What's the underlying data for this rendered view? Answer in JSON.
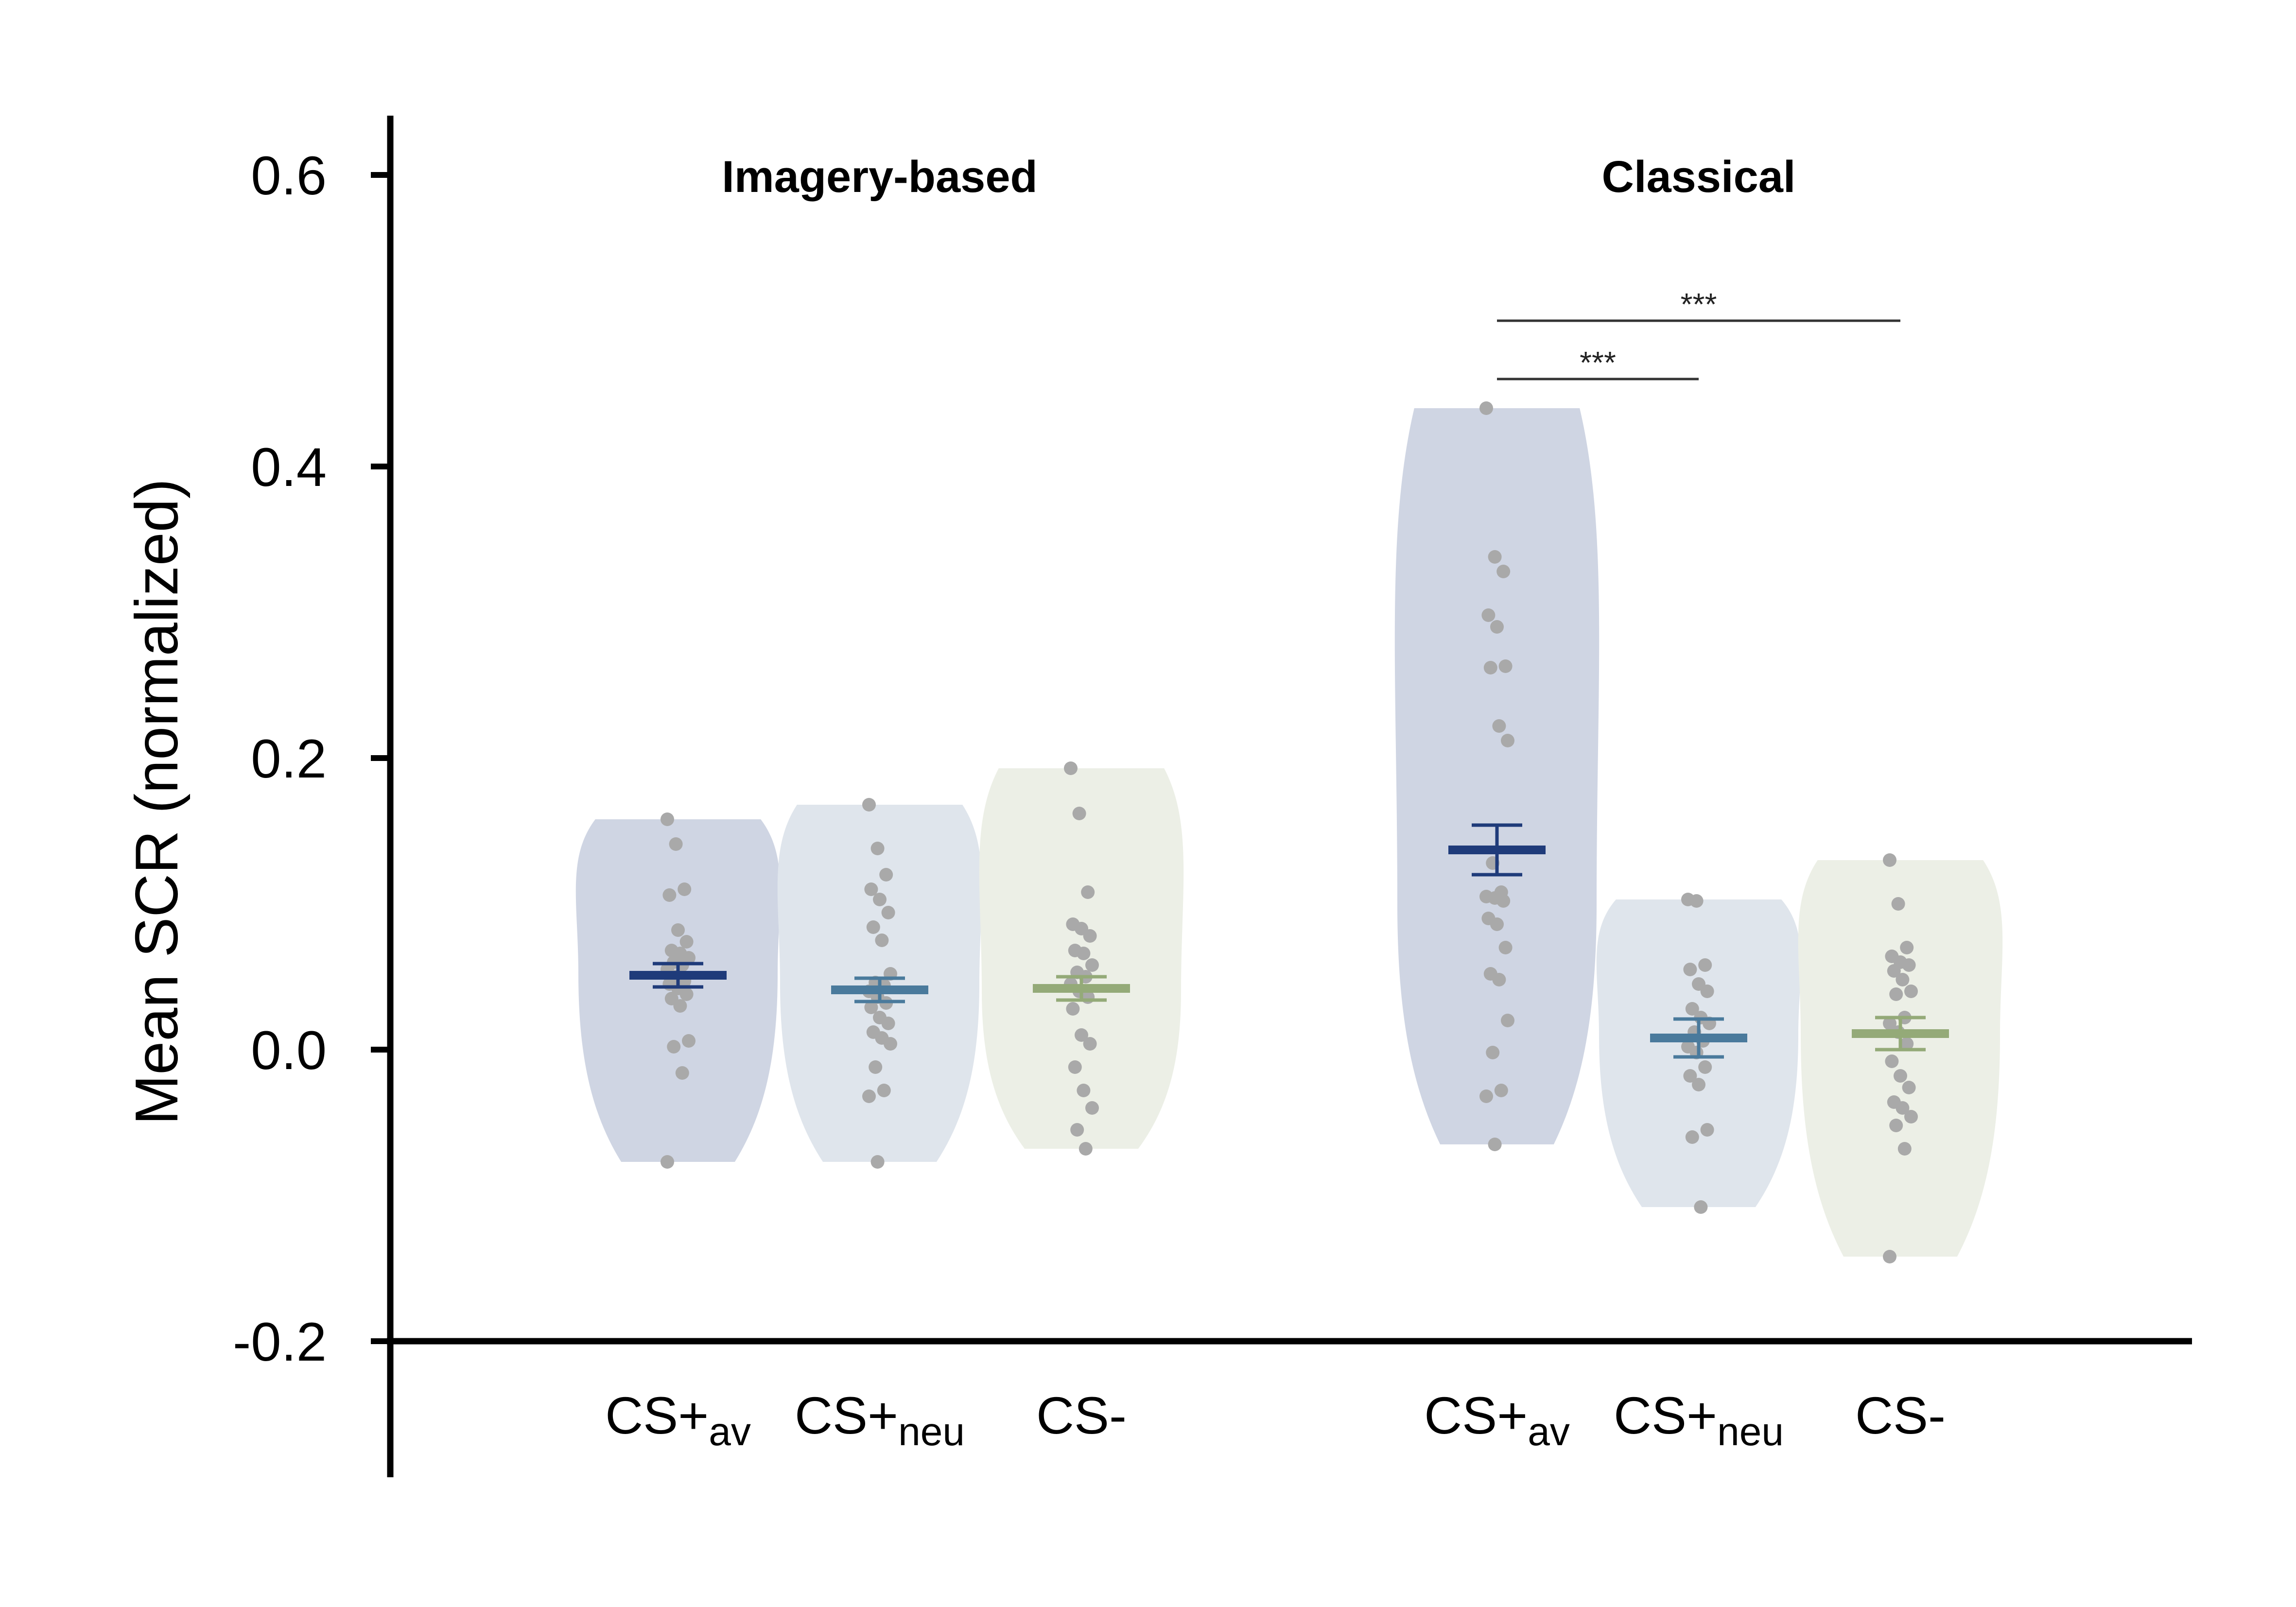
{
  "chart_data": {
    "type": "violin",
    "ylabel": "Mean SCR (normalized)",
    "ylim": [
      -0.2,
      0.6
    ],
    "yticks": [
      "0.6",
      "0.4",
      "0.2",
      "0.0",
      "-0.2"
    ],
    "ytick_values": [
      0.6,
      0.4,
      0.2,
      0.0,
      -0.2
    ],
    "colors": {
      "cs_plus_av": "#1f3b7a",
      "cs_plus_neu": "#4a7a9c",
      "cs_minus": "#94aa78",
      "point": "#a9a9a9"
    },
    "groups": [
      {
        "title": "Imagery-based",
        "conditions": [
          {
            "label_main": "CS+",
            "label_sub": "av",
            "color_key": "cs_plus_av",
            "fill": "#cfd5e3",
            "min": -0.077,
            "max": 0.158,
            "peak": 0.052,
            "mean": 0.051,
            "sem_low": 0.043,
            "sem_high": 0.059,
            "points": [
              0.158,
              0.141,
              0.11,
              0.106,
              0.082,
              0.074,
              0.068,
              0.066,
              0.063,
              0.06,
              0.058,
              0.055,
              0.05,
              0.047,
              0.045,
              0.042,
              0.038,
              0.035,
              0.03,
              0.006,
              0.002,
              -0.016,
              -0.077
            ]
          },
          {
            "label_main": "CS+",
            "label_sub": "neu",
            "color_key": "cs_plus_neu",
            "fill": "#dfe5ec",
            "min": -0.077,
            "max": 0.168,
            "peak": 0.045,
            "mean": 0.041,
            "sem_low": 0.033,
            "sem_high": 0.049,
            "points": [
              0.168,
              0.138,
              0.12,
              0.11,
              0.103,
              0.094,
              0.084,
              0.075,
              0.052,
              0.046,
              0.044,
              0.04,
              0.036,
              0.032,
              0.029,
              0.022,
              0.018,
              0.012,
              0.008,
              0.004,
              -0.012,
              -0.028,
              -0.032,
              -0.077
            ]
          },
          {
            "label_main": "CS-",
            "label_sub": "",
            "color_key": "cs_minus",
            "fill": "#ecefe6",
            "min": -0.068,
            "max": 0.193,
            "peak": 0.04,
            "mean": 0.042,
            "sem_low": 0.034,
            "sem_high": 0.05,
            "points": [
              0.193,
              0.162,
              0.108,
              0.086,
              0.083,
              0.078,
              0.068,
              0.066,
              0.058,
              0.053,
              0.05,
              0.045,
              0.04,
              0.036,
              0.028,
              0.01,
              0.004,
              -0.012,
              -0.028,
              -0.04,
              -0.055,
              -0.068
            ]
          }
        ]
      },
      {
        "title": "Classical",
        "conditions": [
          {
            "label_main": "CS+",
            "label_sub": "av",
            "color_key": "cs_plus_av",
            "fill": "#cfd5e3",
            "min": -0.065,
            "max": 0.44,
            "peak": 0.1,
            "mean": 0.137,
            "sem_low": 0.12,
            "sem_high": 0.154,
            "points": [
              0.44,
              0.338,
              0.328,
              0.298,
              0.29,
              0.263,
              0.262,
              0.222,
              0.212,
              0.128,
              0.108,
              0.105,
              0.104,
              0.102,
              0.09,
              0.086,
              0.07,
              0.052,
              0.048,
              0.02,
              -0.002,
              -0.028,
              -0.032,
              -0.065
            ]
          },
          {
            "label_main": "CS+",
            "label_sub": "neu",
            "color_key": "cs_plus_neu",
            "fill": "#dfe5ec",
            "min": -0.108,
            "max": 0.103,
            "peak": 0.01,
            "mean": 0.008,
            "sem_low": -0.005,
            "sem_high": 0.021,
            "points": [
              0.103,
              0.102,
              0.058,
              0.055,
              0.045,
              0.04,
              0.028,
              0.022,
              0.018,
              0.012,
              0.006,
              0.002,
              -0.002,
              -0.012,
              -0.018,
              -0.024,
              -0.055,
              -0.06,
              -0.108
            ]
          },
          {
            "label_main": "CS-",
            "label_sub": "",
            "color_key": "cs_minus",
            "fill": "#ecefe6",
            "min": -0.142,
            "max": 0.13,
            "peak": 0.01,
            "mean": 0.011,
            "sem_low": 0.0,
            "sem_high": 0.022,
            "points": [
              0.13,
              0.1,
              0.07,
              0.064,
              0.06,
              0.058,
              0.054,
              0.048,
              0.04,
              0.038,
              0.022,
              0.018,
              0.012,
              0.004,
              -0.008,
              -0.018,
              -0.026,
              -0.036,
              -0.04,
              -0.046,
              -0.052,
              -0.068,
              -0.142
            ]
          }
        ]
      }
    ],
    "significance": [
      {
        "group": 1,
        "from": 0,
        "to": 1,
        "y": 0.46,
        "label": "***"
      },
      {
        "group": 1,
        "from": 0,
        "to": 2,
        "y": 0.5,
        "label": "***"
      }
    ]
  }
}
